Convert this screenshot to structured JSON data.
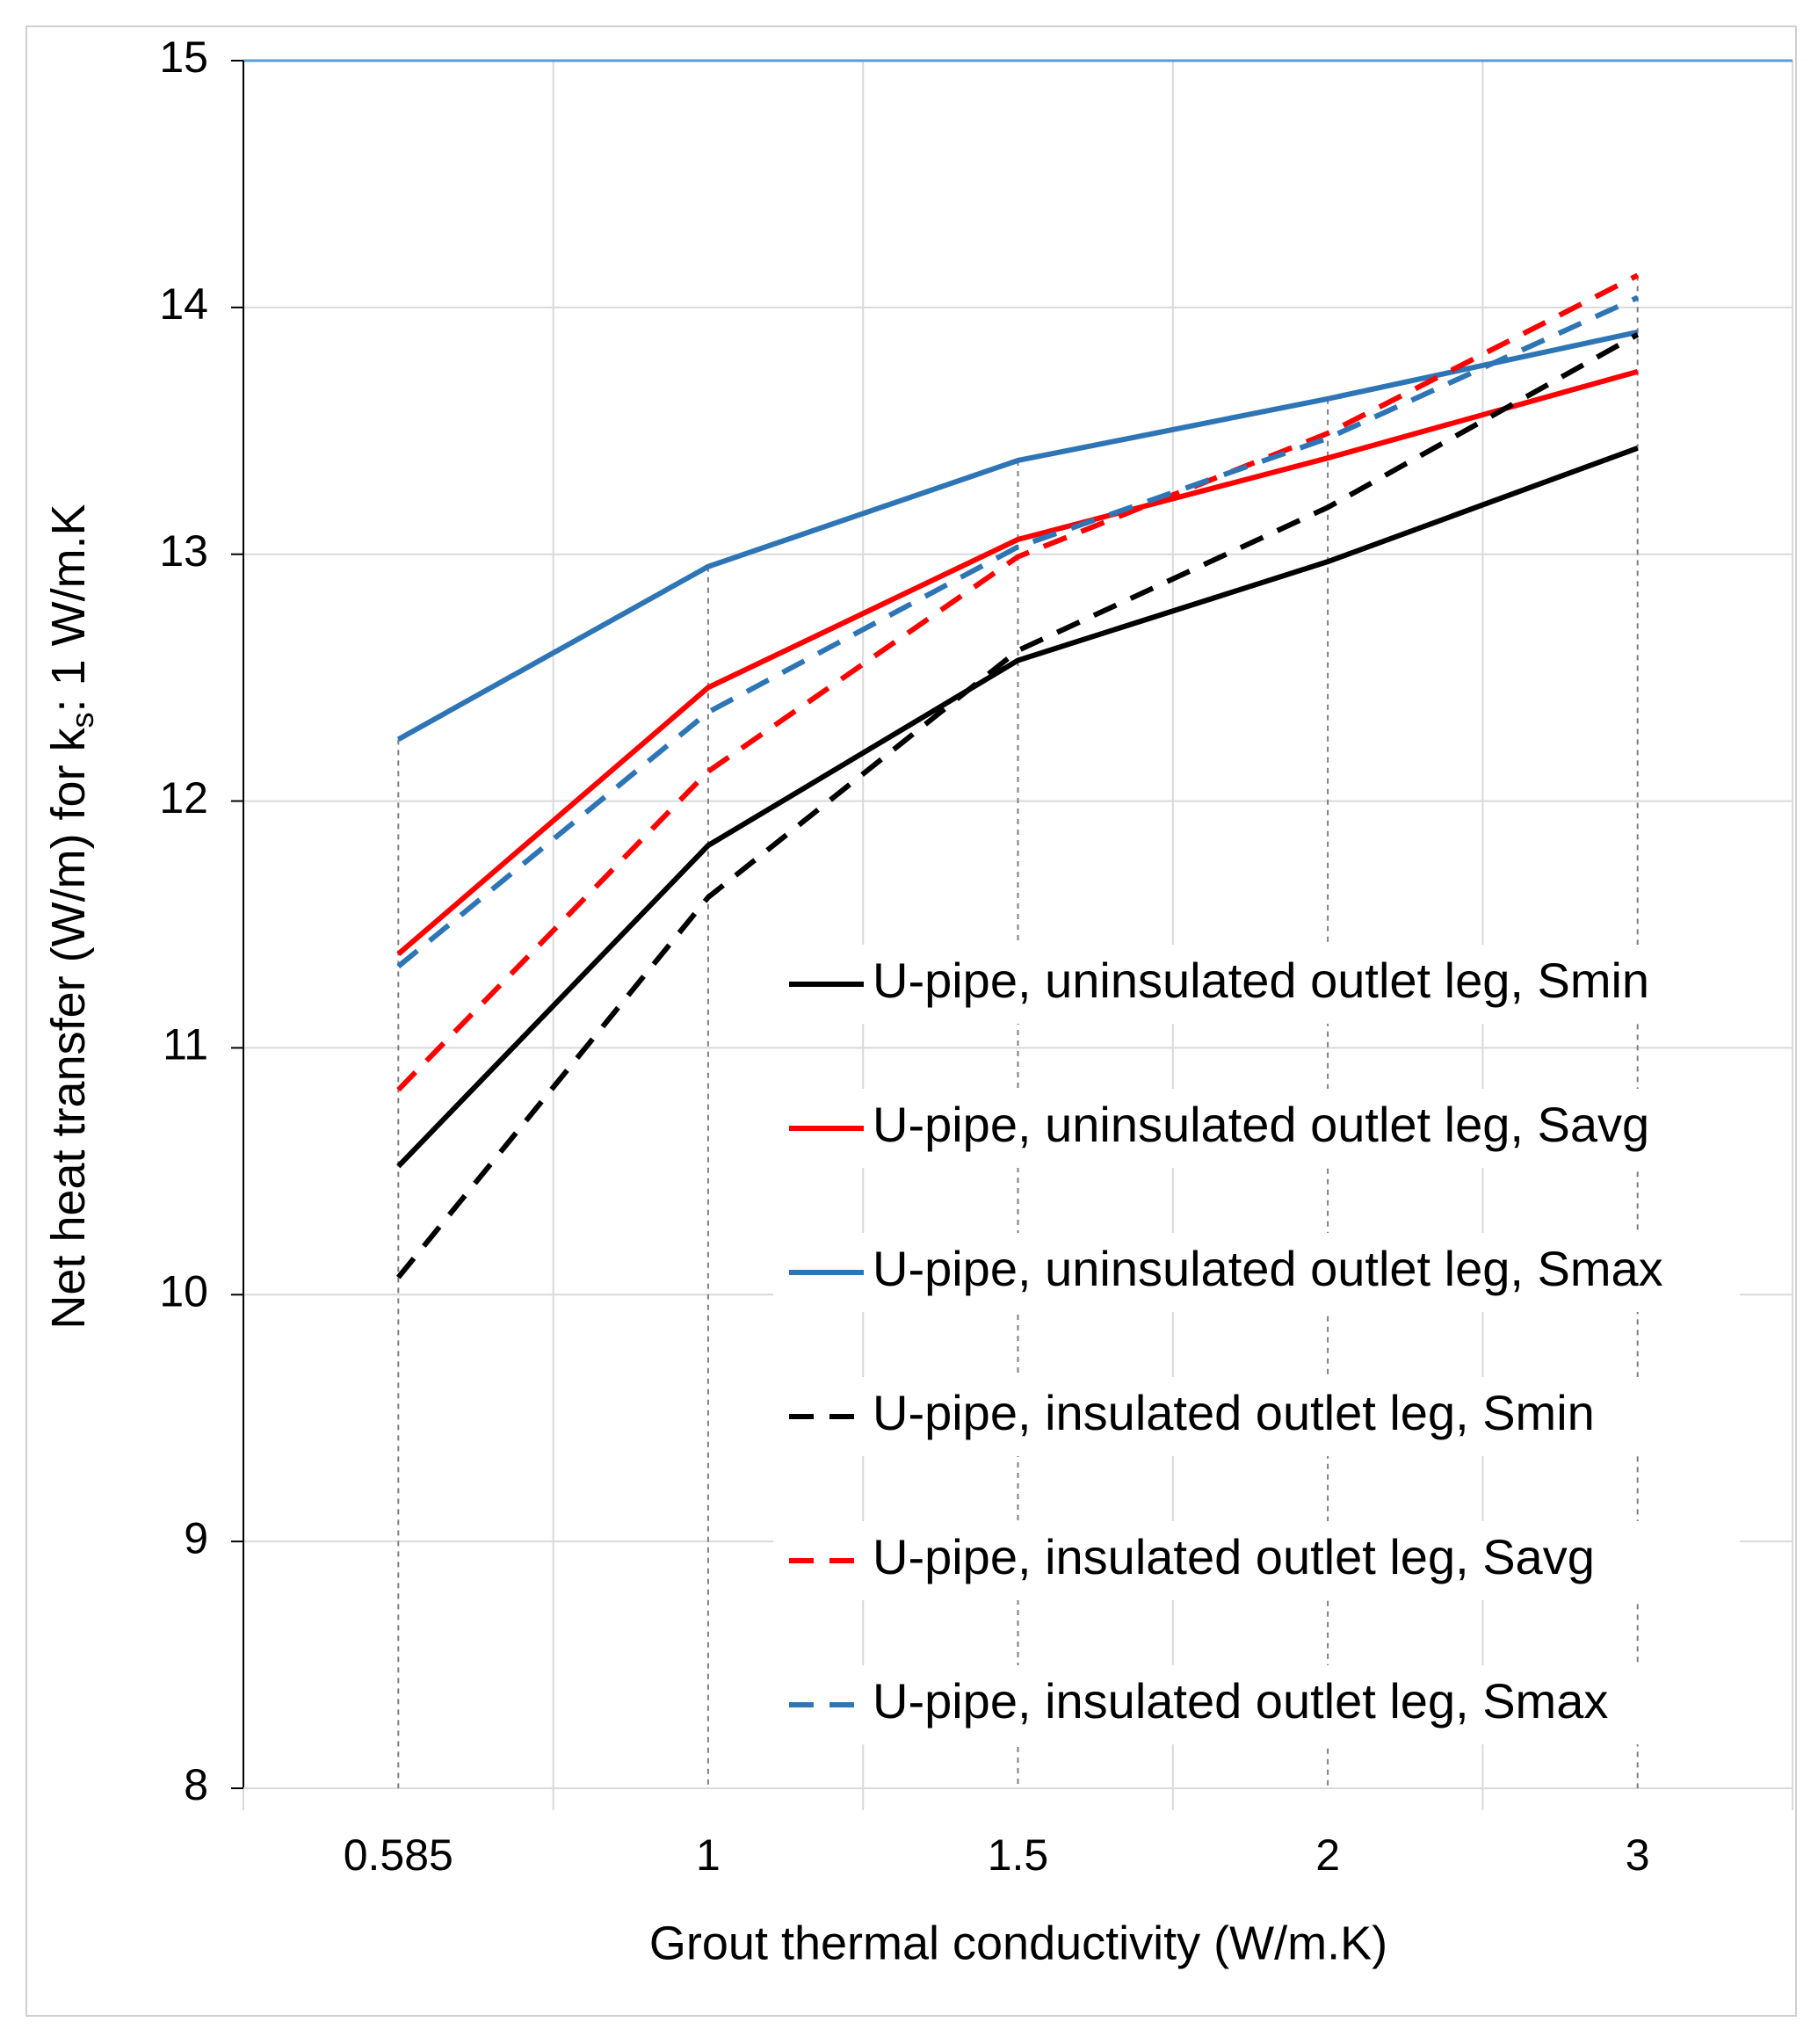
{
  "chart_data": {
    "type": "line",
    "xlabel": "Grout thermal conductivity (W/m.K)",
    "ylabel": {
      "text": "Net heat transfer (W/m) for k",
      "subscript": "s",
      "suffix": ": 1 W/m.K"
    },
    "categories": [
      "0.585",
      "1",
      "1.5",
      "2",
      "3"
    ],
    "ylim": [
      8,
      15
    ],
    "yticks": [
      8,
      9,
      10,
      11,
      12,
      13,
      14,
      15
    ],
    "grid": true,
    "series": [
      {
        "name": "U-pipe, uninsulated outlet leg, Smin",
        "color": "#000000",
        "dash": false,
        "values": [
          10.52,
          11.82,
          12.57,
          12.97,
          13.43
        ]
      },
      {
        "name": "U-pipe, uninsulated outlet leg, Savg",
        "color": "#ff0000",
        "dash": false,
        "values": [
          11.38,
          12.46,
          13.06,
          13.39,
          13.74
        ]
      },
      {
        "name": "U-pipe, uninsulated outlet leg, Smax",
        "color": "#2e75b6",
        "dash": false,
        "values": [
          12.25,
          12.95,
          13.38,
          13.63,
          13.9
        ]
      },
      {
        "name": "U-pipe, insulated outlet leg, Smin",
        "color": "#000000",
        "dash": true,
        "values": [
          10.07,
          11.61,
          12.61,
          13.19,
          13.89
        ]
      },
      {
        "name": "U-pipe, insulated outlet leg, Savg",
        "color": "#ff0000",
        "dash": true,
        "values": [
          10.83,
          12.12,
          12.99,
          13.49,
          14.13
        ]
      },
      {
        "name": "U-pipe, insulated outlet leg, Smax",
        "color": "#2e75b6",
        "dash": true,
        "values": [
          11.33,
          12.36,
          13.03,
          13.47,
          14.04
        ]
      }
    ]
  }
}
